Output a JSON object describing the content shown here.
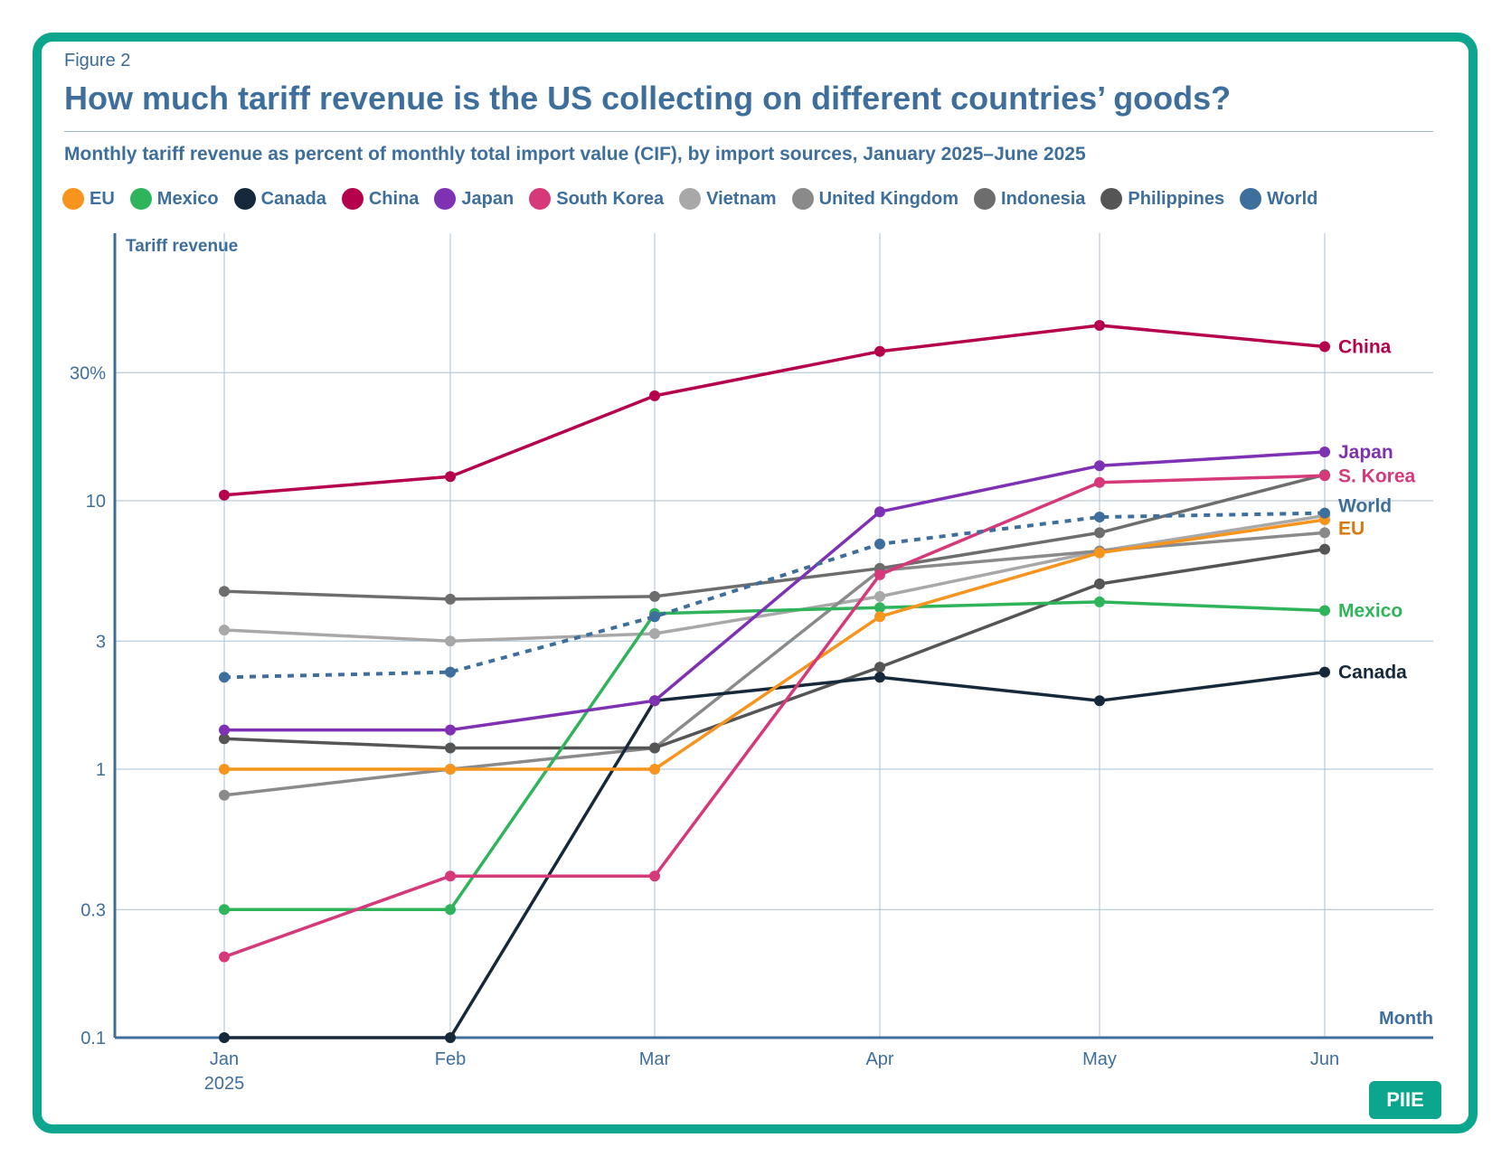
{
  "figure_label": "Figure 2",
  "title": "How much tariff revenue is the US collecting on different countries’ goods?",
  "subtitle": "Monthly tariff revenue as percent of monthly total import value (CIF), by import sources, January 2025–June 2025",
  "logo": "PIIE",
  "colors": {
    "frame": "#0ca58e",
    "text": "#3e6f9c",
    "grid": "#a9bfd3",
    "axis": "#3e6f9c"
  },
  "chart_data": {
    "type": "line",
    "y_scale": "log",
    "ylabel": "Tariff revenue",
    "xlabel": "Month",
    "categories": [
      "Jan",
      "Feb",
      "Mar",
      "Apr",
      "May",
      "Jun"
    ],
    "x_sublabels": [
      "2025",
      "",
      "",
      "",
      "",
      ""
    ],
    "ylim": [
      0.1,
      100
    ],
    "y_ticks": [
      {
        "value": 0.1,
        "label": "0.1"
      },
      {
        "value": 0.3,
        "label": "0.3"
      },
      {
        "value": 1,
        "label": "1"
      },
      {
        "value": 3,
        "label": "3"
      },
      {
        "value": 10,
        "label": "10"
      },
      {
        "value": 30,
        "label": "30%"
      }
    ],
    "series": [
      {
        "name": "Vietnam",
        "color": "#a8a8a8",
        "values": [
          3.3,
          3.0,
          3.2,
          4.4,
          6.5,
          8.8
        ],
        "end_label": ""
      },
      {
        "name": "United Kingdom",
        "color": "#8a8a8a",
        "values": [
          0.8,
          1.0,
          1.2,
          5.5,
          6.5,
          7.6
        ],
        "end_label": ""
      },
      {
        "name": "Indonesia",
        "color": "#6d6d6d",
        "values": [
          4.6,
          4.3,
          4.4,
          5.6,
          7.6,
          12.5
        ],
        "end_label": ""
      },
      {
        "name": "Philippines",
        "color": "#555555",
        "values": [
          1.3,
          1.2,
          1.2,
          2.4,
          4.9,
          6.6
        ],
        "end_label": ""
      },
      {
        "name": "Canada",
        "color": "#16293b",
        "values": [
          0.1,
          0.1,
          1.8,
          2.2,
          1.8,
          2.3
        ],
        "end_label": "Canada"
      },
      {
        "name": "Mexico",
        "color": "#2fb35b",
        "values": [
          0.3,
          0.3,
          3.8,
          4.0,
          4.2,
          3.9
        ],
        "end_label": "Mexico"
      },
      {
        "name": "EU",
        "color": "#f7941d",
        "values": [
          1.0,
          1.0,
          1.0,
          3.7,
          6.4,
          8.5
        ],
        "end_label": "EU"
      },
      {
        "name": "South Korea",
        "color": "#d6397a",
        "values": [
          0.2,
          0.4,
          0.4,
          5.3,
          11.7,
          12.4
        ],
        "end_label": "S. Korea"
      },
      {
        "name": "Japan",
        "color": "#7e31b3",
        "values": [
          1.4,
          1.4,
          1.8,
          9.1,
          13.5,
          15.2
        ],
        "end_label": "Japan"
      },
      {
        "name": "China",
        "color": "#b5004b",
        "values": [
          10.5,
          12.3,
          24.6,
          36.0,
          45.0,
          37.5
        ],
        "end_label": "China"
      },
      {
        "name": "World",
        "color": "#3e6f9c",
        "values": [
          2.2,
          2.3,
          3.7,
          6.9,
          8.7,
          9.0
        ],
        "end_label": "World",
        "dashed": true
      }
    ],
    "legend": [
      {
        "name": "EU",
        "color": "#f7941d"
      },
      {
        "name": "Mexico",
        "color": "#2fb35b"
      },
      {
        "name": "Canada",
        "color": "#16293b"
      },
      {
        "name": "China",
        "color": "#b5004b"
      },
      {
        "name": "Japan",
        "color": "#7e31b3"
      },
      {
        "name": "South Korea",
        "color": "#d6397a"
      },
      {
        "name": "Vietnam",
        "color": "#a8a8a8"
      },
      {
        "name": "United Kingdom",
        "color": "#8a8a8a"
      },
      {
        "name": "Indonesia",
        "color": "#6d6d6d"
      },
      {
        "name": "Philippines",
        "color": "#555555"
      },
      {
        "name": "World",
        "color": "#3e6f9c"
      }
    ],
    "end_label_colors": {
      "China": "#b5004b",
      "Japan": "#7e31b3",
      "S. Korea": "#d6397a",
      "World": "#3e6f9c",
      "EU": "#d9780b",
      "Mexico": "#2fb35b",
      "Canada": "#16293b"
    }
  }
}
